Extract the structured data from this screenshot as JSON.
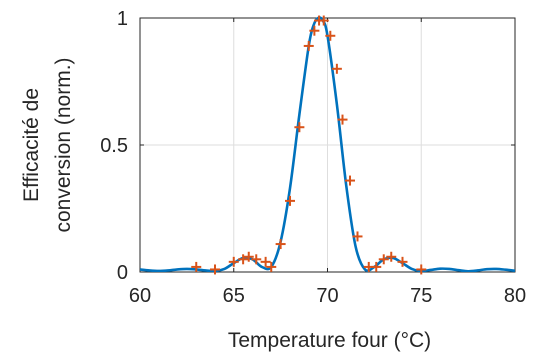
{
  "chart_data": {
    "type": "line",
    "xlabel": "Temperature four (°C)",
    "ylabel_lines": [
      "Efficacité de",
      "conversion (norm.)"
    ],
    "xlim": [
      60,
      80
    ],
    "ylim": [
      0,
      1
    ],
    "xticks": [
      60,
      65,
      70,
      75,
      80
    ],
    "yticks": [
      0,
      0.5,
      1
    ],
    "xtick_labels": [
      "60",
      "65",
      "70",
      "75",
      "80"
    ],
    "ytick_labels": [
      "0",
      "0.5",
      "1"
    ],
    "grid": true,
    "series": [
      {
        "kind": "line",
        "color": "#0072BD",
        "style": "solid",
        "x": [
          60,
          60.5,
          61,
          61.5,
          62,
          62.5,
          63,
          63.5,
          64,
          64.5,
          65,
          65.5,
          66,
          66.5,
          67,
          67.5,
          68,
          68.5,
          69,
          69.25,
          69.5,
          69.75,
          70,
          70.5,
          71,
          71.5,
          72,
          72.5,
          73,
          73.5,
          74,
          74.5,
          75,
          75.5,
          76,
          76.5,
          77,
          77.5,
          78,
          78.5,
          79,
          79.5,
          80
        ],
        "y": [
          0.01,
          0.006,
          0.004,
          0.006,
          0.01,
          0.012,
          0.01,
          0.006,
          0.004,
          0.012,
          0.035,
          0.055,
          0.05,
          0.02,
          0.02,
          0.12,
          0.33,
          0.62,
          0.89,
          0.97,
          1.0,
          0.99,
          0.93,
          0.66,
          0.34,
          0.1,
          0.01,
          0.02,
          0.05,
          0.055,
          0.035,
          0.012,
          0.004,
          0.008,
          0.013,
          0.012,
          0.007,
          0.003,
          0.006,
          0.011,
          0.012,
          0.009,
          0.005
        ]
      },
      {
        "kind": "markers",
        "marker": "+",
        "color": "#D95319",
        "x": [
          63,
          64,
          65,
          65.5,
          65.8,
          66.2,
          66.7,
          67,
          67.5,
          68,
          68.5,
          69,
          69.3,
          69.55,
          69.8,
          70.15,
          70.5,
          70.8,
          71.2,
          71.6,
          72.2,
          72.6,
          73,
          73.4,
          74,
          75
        ],
        "y": [
          0.02,
          0.01,
          0.04,
          0.05,
          0.06,
          0.05,
          0.04,
          0.02,
          0.11,
          0.28,
          0.57,
          0.89,
          0.95,
          0.99,
          0.99,
          0.93,
          0.8,
          0.6,
          0.36,
          0.14,
          0.02,
          0.02,
          0.05,
          0.06,
          0.04,
          0.01
        ]
      }
    ]
  }
}
